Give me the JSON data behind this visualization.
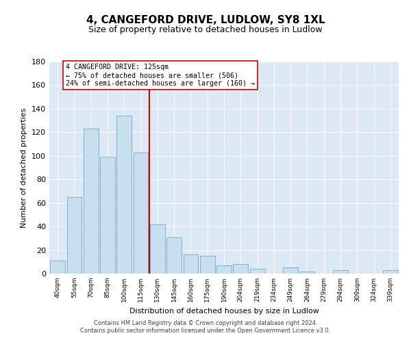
{
  "title": "4, CANGEFORD DRIVE, LUDLOW, SY8 1XL",
  "subtitle": "Size of property relative to detached houses in Ludlow",
  "xlabel": "Distribution of detached houses by size in Ludlow",
  "ylabel": "Number of detached properties",
  "bar_labels": [
    "40sqm",
    "55sqm",
    "70sqm",
    "85sqm",
    "100sqm",
    "115sqm",
    "130sqm",
    "145sqm",
    "160sqm",
    "175sqm",
    "190sqm",
    "204sqm",
    "219sqm",
    "234sqm",
    "249sqm",
    "264sqm",
    "279sqm",
    "294sqm",
    "309sqm",
    "324sqm",
    "339sqm"
  ],
  "bar_values": [
    11,
    65,
    123,
    99,
    134,
    103,
    42,
    31,
    16,
    15,
    7,
    8,
    4,
    0,
    5,
    2,
    0,
    3,
    0,
    0,
    3
  ],
  "bar_color": "#c8dff0",
  "bar_edge_color": "#7fb0d0",
  "vline_color": "#cc0000",
  "annotation_title": "4 CANGEFORD DRIVE: 125sqm",
  "annotation_line1": "← 75% of detached houses are smaller (506)",
  "annotation_line2": "24% of semi-detached houses are larger (160) →",
  "annotation_box_color": "#ffffff",
  "annotation_box_edge": "#cc0000",
  "ylim": [
    0,
    180
  ],
  "yticks": [
    0,
    20,
    40,
    60,
    80,
    100,
    120,
    140,
    160,
    180
  ],
  "footer_line1": "Contains HM Land Registry data © Crown copyright and database right 2024.",
  "footer_line2": "Contains public sector information licensed under the Open Government Licence v3.0.",
  "bg_color": "#dde8f5",
  "fig_bg_color": "#ffffff",
  "title_fontsize": 11,
  "subtitle_fontsize": 9
}
